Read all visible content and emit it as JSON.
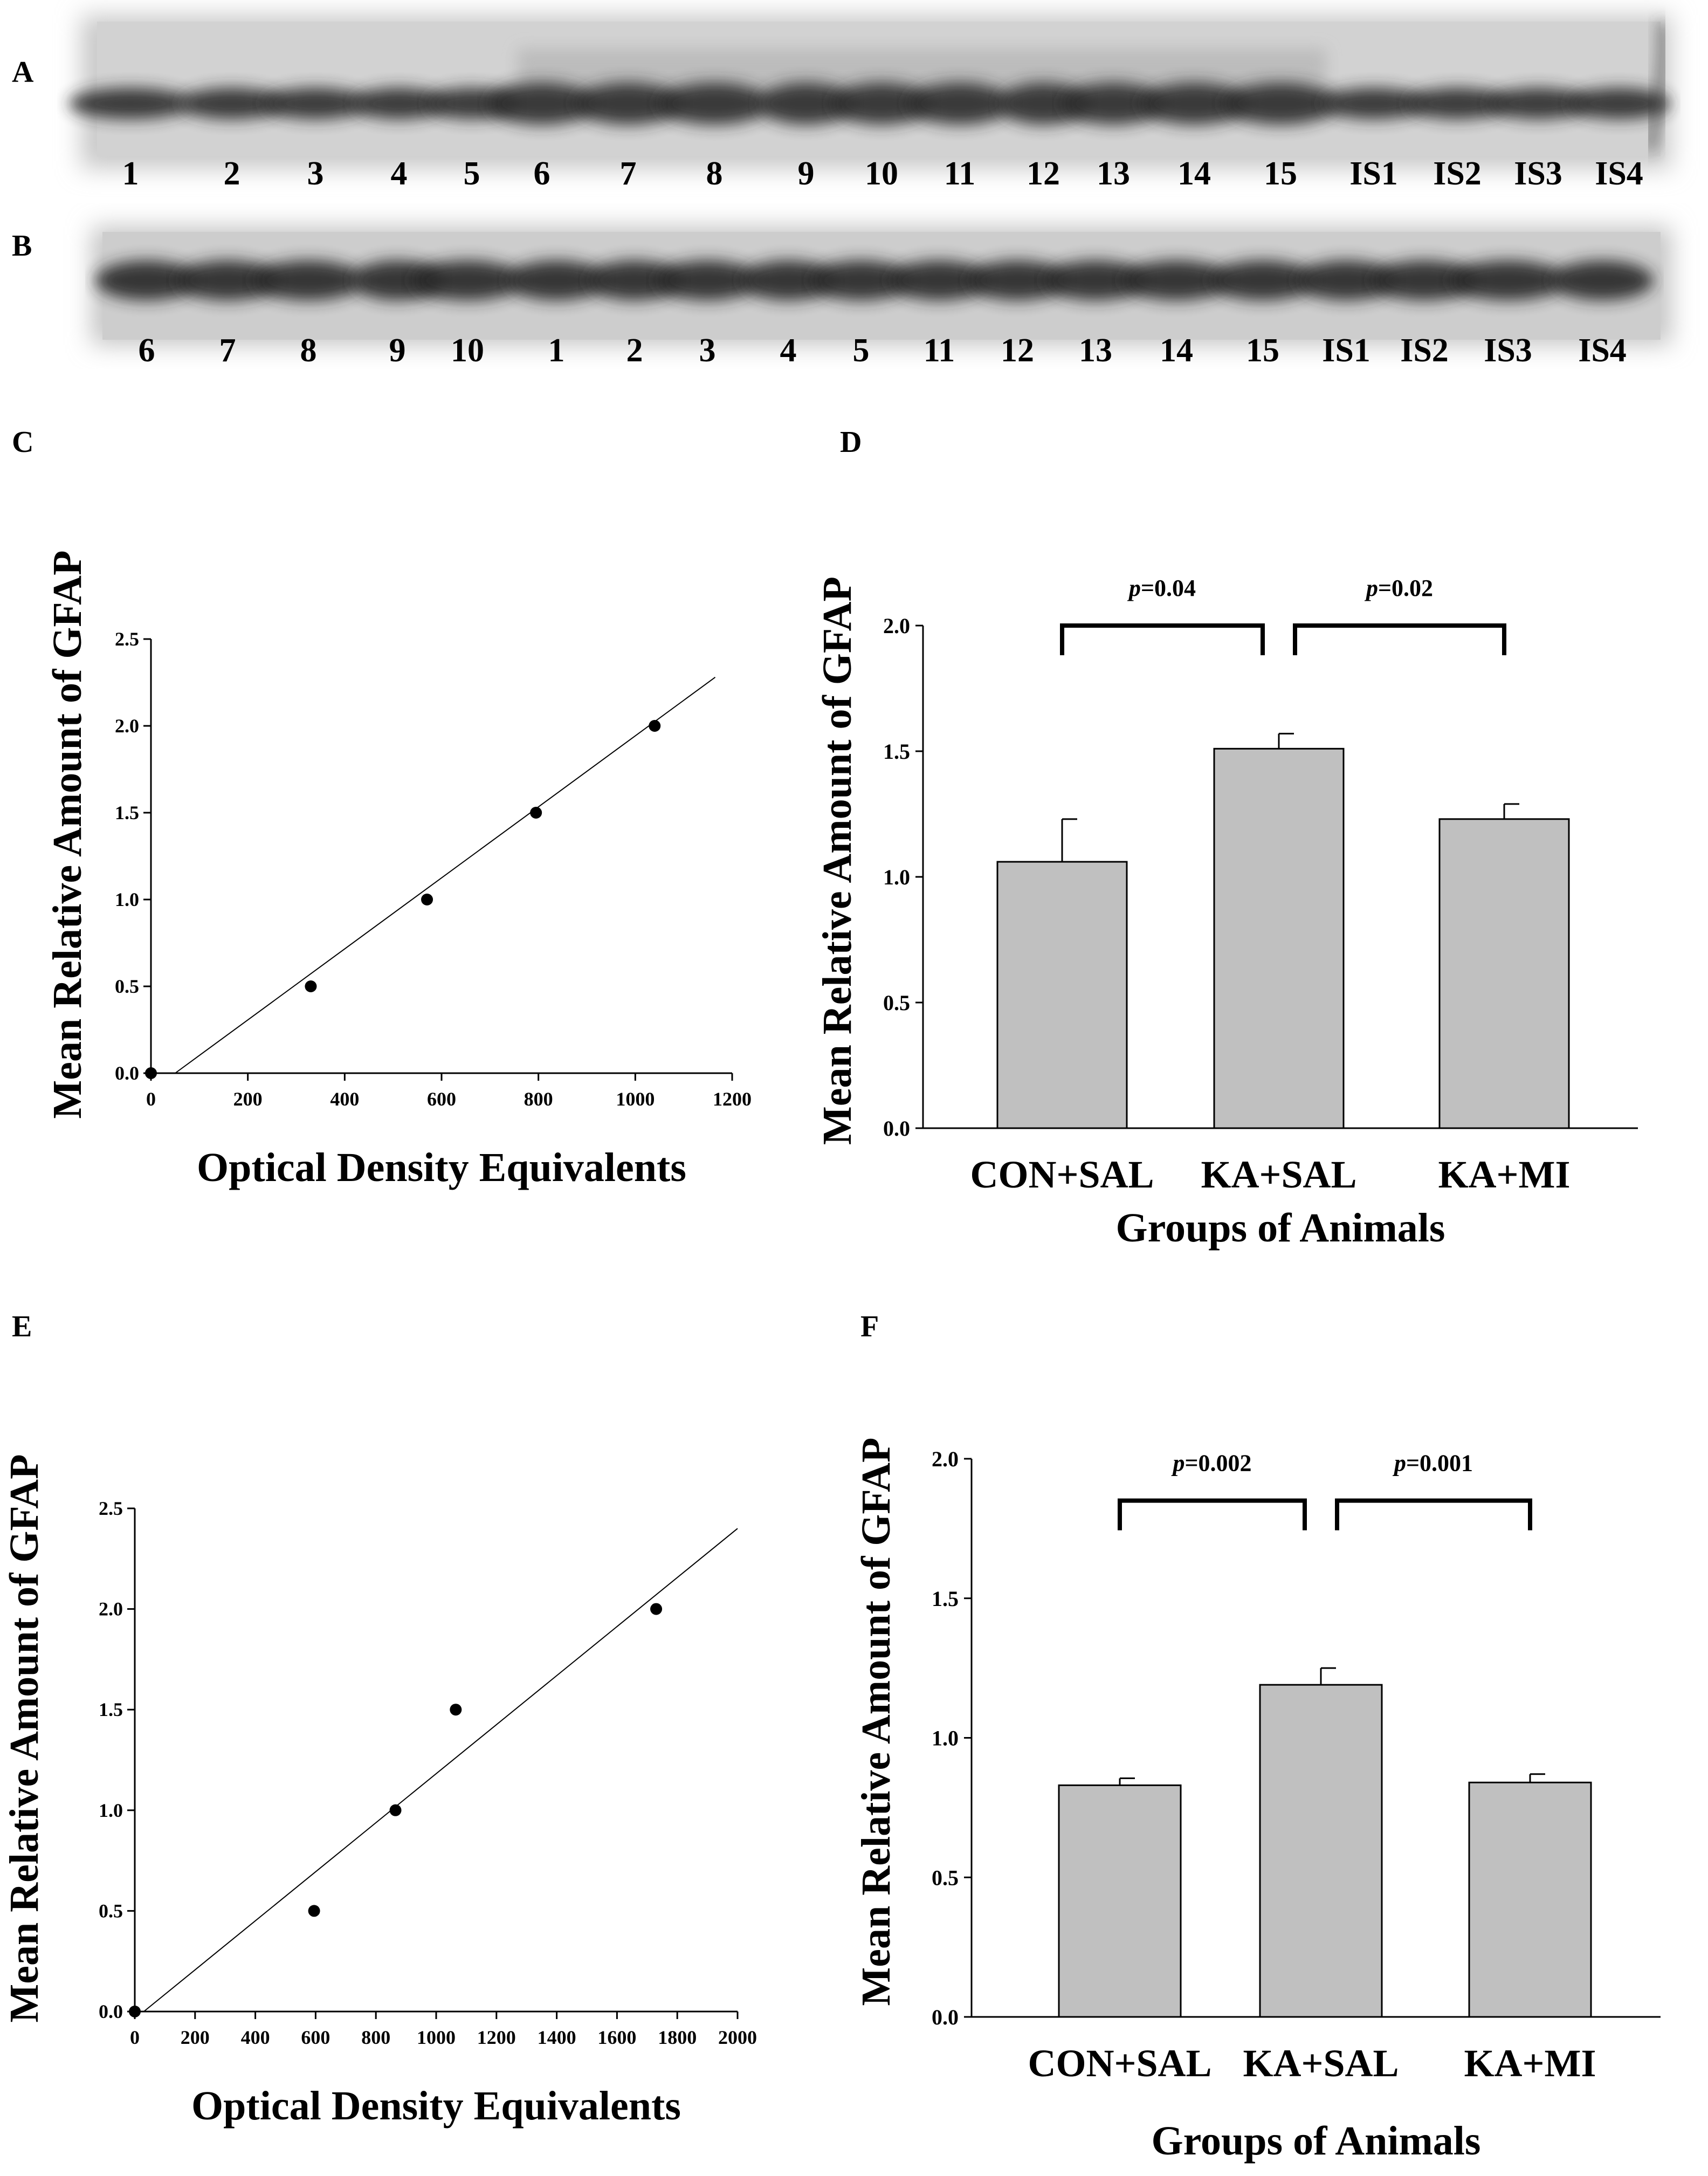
{
  "panels": {
    "A": "A",
    "B": "B",
    "C": "C",
    "D": "D",
    "E": "E",
    "F": "F"
  },
  "blots": [
    {
      "id": "A",
      "lanes": [
        "1",
        "2",
        "3",
        "4",
        "5",
        "6",
        "7",
        "8",
        "9",
        "10",
        "11",
        "12",
        "13",
        "14",
        "15",
        "IS1",
        "IS2",
        "IS3",
        "IS4"
      ]
    },
    {
      "id": "B",
      "lanes": [
        "6",
        "7",
        "8",
        "9",
        "10",
        "1",
        "2",
        "3",
        "4",
        "5",
        "11",
        "12",
        "13",
        "14",
        "15",
        "IS1",
        "IS2",
        "IS3",
        "IS4"
      ]
    }
  ],
  "chart_data": [
    {
      "id": "C",
      "type": "scatter",
      "xlabel": "Optical Density Equivalents",
      "ylabel": "Mean Relative Amount of GFAP",
      "xlim": [
        0,
        1200
      ],
      "ylim": [
        0,
        2.5
      ],
      "xticks": [
        0,
        200,
        400,
        600,
        800,
        1000,
        1200
      ],
      "yticks": [
        "0.0",
        "0.5",
        "1.0",
        "1.5",
        "2.0",
        "2.5"
      ],
      "points": [
        [
          0,
          0
        ],
        [
          330,
          0.5
        ],
        [
          570,
          1.0
        ],
        [
          795,
          1.5
        ],
        [
          1040,
          2.0
        ]
      ],
      "fit_line": [
        [
          50,
          0
        ],
        [
          1165,
          2.28
        ]
      ]
    },
    {
      "id": "D",
      "type": "bar",
      "xlabel": "Groups of Animals",
      "ylabel": "Mean Relative Amount of GFAP",
      "ylim": [
        0,
        2.0
      ],
      "yticks": [
        "0.0",
        "0.5",
        "1.0",
        "1.5",
        "2.0"
      ],
      "categories": [
        "CON+SAL",
        "KA+SAL",
        "KA+MI"
      ],
      "values": [
        1.06,
        1.51,
        1.23
      ],
      "errors": [
        0.17,
        0.06,
        0.06
      ],
      "comparisons": [
        {
          "from": 0,
          "to": 1,
          "p_label": "p",
          "p_value": "=0.04",
          "level": 2.0
        },
        {
          "from": 1,
          "to": 2,
          "p_label": "p",
          "p_value": "=0.02",
          "level": 2.0
        }
      ]
    },
    {
      "id": "E",
      "type": "scatter",
      "xlabel": "Optical Density  Equivalents",
      "ylabel": "Mean Relative Amount of GFAP",
      "xlim": [
        0,
        2000
      ],
      "ylim": [
        0,
        2.5
      ],
      "xticks": [
        0,
        200,
        400,
        600,
        800,
        1000,
        1200,
        1400,
        1600,
        1800,
        2000
      ],
      "yticks": [
        "0.0",
        "0.5",
        "1.0",
        "1.5",
        "2.0",
        "2.5"
      ],
      "points": [
        [
          0,
          0
        ],
        [
          595,
          0.5
        ],
        [
          865,
          1.0
        ],
        [
          1065,
          1.5
        ],
        [
          1730,
          2.0
        ]
      ],
      "fit_line": [
        [
          30,
          0
        ],
        [
          2000,
          2.4
        ]
      ]
    },
    {
      "id": "F",
      "type": "bar",
      "xlabel": "Groups of Animals",
      "ylabel": "Mean Relative Amount of GFAP",
      "ylim": [
        0,
        2.0
      ],
      "yticks": [
        "0.0",
        "0.5",
        "1.0",
        "1.5",
        "2.0"
      ],
      "categories": [
        "CON+SAL",
        "KA+SAL",
        "KA+MI"
      ],
      "values": [
        0.83,
        1.19,
        0.84
      ],
      "errors": [
        0.025,
        0.06,
        0.03
      ],
      "comparisons": [
        {
          "from": 0,
          "to": 1,
          "p_label": "p",
          "p_value": "=0.002",
          "level": 1.85
        },
        {
          "from": 1,
          "to": 2,
          "p_label": "p",
          "p_value": "=0.001",
          "level": 1.85
        }
      ]
    }
  ]
}
